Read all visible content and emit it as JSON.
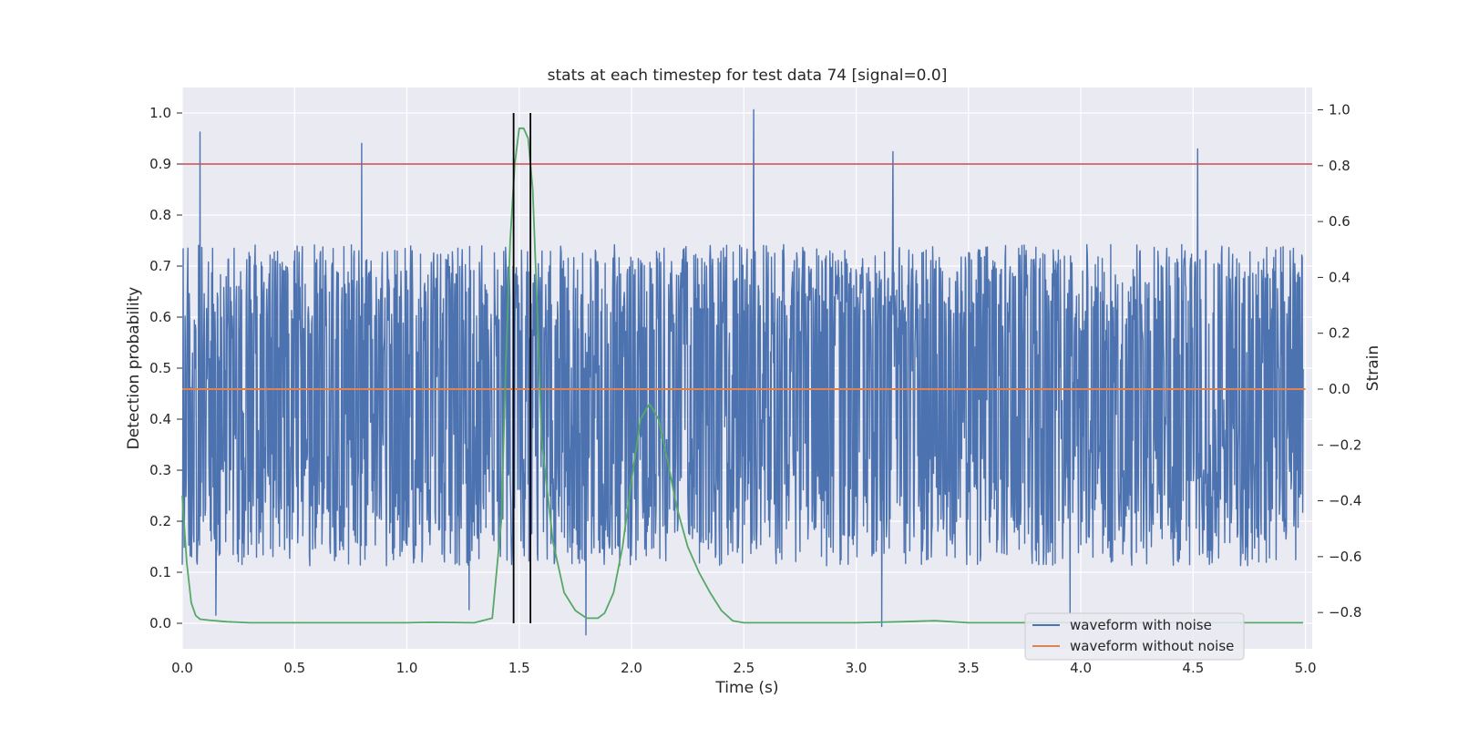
{
  "chart_data": {
    "type": "line",
    "title": "stats at each timestep for test data 74 [signal=0.0]",
    "xlabel": "Time (s)",
    "ylabel_left": "Detection probability",
    "ylabel_right": "Strain",
    "xlim": [
      0.0,
      5.03
    ],
    "ylim_left": [
      -0.05,
      1.05
    ],
    "ylim_right": [
      -0.93,
      1.08
    ],
    "grid": true,
    "legend_position": "lower-right",
    "x_ticks": [
      "0.0",
      "0.5",
      "1.0",
      "1.5",
      "2.0",
      "2.5",
      "3.0",
      "3.5",
      "4.0",
      "4.5",
      "5.0"
    ],
    "y_left_ticks": [
      "0.0",
      "0.1",
      "0.2",
      "0.3",
      "0.4",
      "0.5",
      "0.6",
      "0.7",
      "0.8",
      "0.9",
      "1.0"
    ],
    "y_right_ticks": [
      "−0.8",
      "−0.6",
      "−0.4",
      "−0.2",
      "0.0",
      "0.2",
      "0.4",
      "0.6",
      "0.8",
      "1.0"
    ],
    "legend": {
      "noise_label": "waveform with noise",
      "clean_label": "waveform without noise"
    },
    "colors": {
      "noise": "#4c72b0",
      "clean": "#dd8452",
      "probability": "#55a868",
      "threshold": "#c44e52",
      "markers": "#000000",
      "background": "#eaeaf2",
      "grid": "#ffffff"
    },
    "noise_series": {
      "name": "waveform with noise",
      "axis": "right",
      "mean": 0.0,
      "typical_range": [
        -0.55,
        0.45
      ],
      "spikes": [
        {
          "x": 0.08,
          "y": 0.92
        },
        {
          "x": 0.15,
          "y": -0.81
        },
        {
          "x": 0.8,
          "y": 0.88
        },
        {
          "x": 1.28,
          "y": -0.79
        },
        {
          "x": 2.55,
          "y": 1.0
        },
        {
          "x": 1.8,
          "y": -0.88
        },
        {
          "x": 3.12,
          "y": -0.85
        },
        {
          "x": 3.17,
          "y": 0.85
        },
        {
          "x": 4.53,
          "y": 0.86
        },
        {
          "x": 3.96,
          "y": -0.8
        }
      ]
    },
    "clean_series": {
      "name": "waveform without noise",
      "axis": "right",
      "x": [
        0.0,
        5.0
      ],
      "y": [
        0.0,
        0.0
      ]
    },
    "probability_series": {
      "axis": "left",
      "x": [
        0.0,
        0.02,
        0.04,
        0.06,
        0.08,
        0.12,
        0.2,
        0.3,
        0.5,
        1.0,
        1.1,
        1.3,
        1.38,
        1.42,
        1.44,
        1.46,
        1.48,
        1.5,
        1.52,
        1.54,
        1.56,
        1.58,
        1.6,
        1.65,
        1.7,
        1.75,
        1.8,
        1.85,
        1.88,
        1.92,
        1.96,
        2.0,
        2.04,
        2.08,
        2.12,
        2.16,
        2.2,
        2.25,
        2.3,
        2.35,
        2.4,
        2.45,
        2.5,
        2.6,
        3.0,
        3.2,
        3.35,
        3.5,
        4.0,
        4.5,
        4.99
      ],
      "y": [
        0.25,
        0.12,
        0.04,
        0.015,
        0.008,
        0.006,
        0.003,
        0.001,
        0.001,
        0.001,
        0.002,
        0.001,
        0.01,
        0.2,
        0.5,
        0.75,
        0.9,
        0.97,
        0.97,
        0.95,
        0.85,
        0.62,
        0.36,
        0.16,
        0.06,
        0.025,
        0.01,
        0.01,
        0.02,
        0.06,
        0.15,
        0.28,
        0.4,
        0.43,
        0.4,
        0.32,
        0.23,
        0.15,
        0.1,
        0.06,
        0.025,
        0.005,
        0.001,
        0.001,
        0.001,
        0.003,
        0.005,
        0.001,
        0.001,
        0.001,
        0.001
      ]
    },
    "threshold_line": {
      "axis": "left",
      "y": 0.9
    },
    "markers": [
      {
        "x": 1.475,
        "y_range": [
          0.0,
          1.0
        ]
      },
      {
        "x": 1.55,
        "y_range": [
          0.0,
          1.0
        ]
      }
    ]
  }
}
